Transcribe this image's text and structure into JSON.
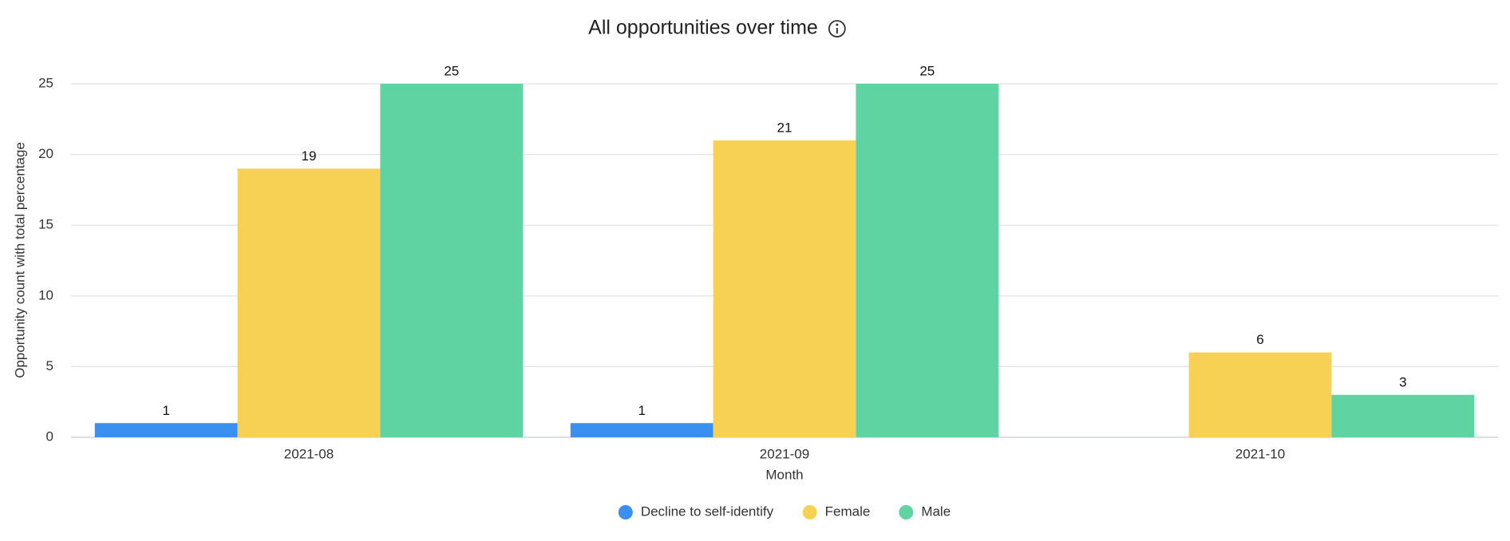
{
  "chart_data": {
    "type": "bar",
    "title": "All opportunities over time",
    "x_label": "Month",
    "y_label": "Opportunity count with total percentage",
    "categories": [
      "2021-08",
      "2021-09",
      "2021-10"
    ],
    "series": [
      {
        "name": "Decline to self-identify",
        "color": "#3b8ff0",
        "values": [
          1,
          1,
          null
        ]
      },
      {
        "name": "Female",
        "color": "#f7d154",
        "values": [
          19,
          21,
          6
        ]
      },
      {
        "name": "Male",
        "color": "#5fd3a2",
        "values": [
          25,
          25,
          3
        ]
      }
    ],
    "ylim": [
      0,
      25
    ],
    "yticks": [
      0,
      5,
      10,
      15,
      20,
      25
    ],
    "grid": true,
    "legend": "bottom"
  }
}
